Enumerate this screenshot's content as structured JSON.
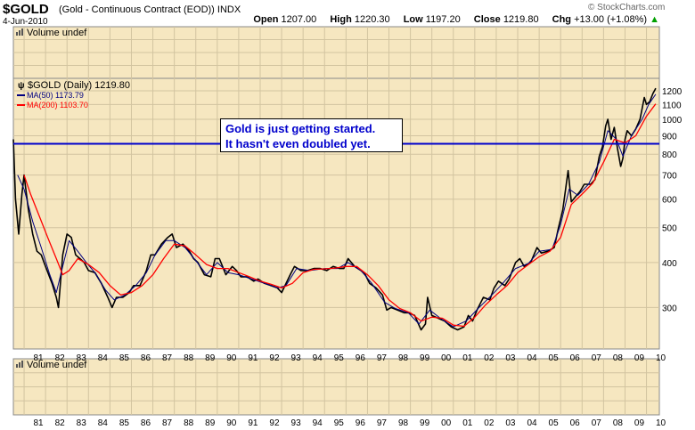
{
  "header": {
    "symbol": "$GOLD",
    "description": "(Gold - Continuous Contract (EOD))",
    "exchange": "INDX",
    "date": "4-Jun-2010",
    "brand": "© StockCharts.com",
    "open_label": "Open",
    "open": "1207.00",
    "high_label": "High",
    "high": "1220.30",
    "low_label": "Low",
    "low": "1197.20",
    "close_label": "Close",
    "close": "1219.80",
    "chg_label": "Chg",
    "chg": "+13.00 (+1.08%)",
    "chg_arrow": "▲"
  },
  "panels": {
    "volume_top_label": "Volume undef",
    "volume_bottom_label": "Volume undef"
  },
  "legend": {
    "price": "$GOLD (Daily) 1219.80",
    "ma50": "MA(50) 1173.79",
    "ma200": "MA(200) 1103.70"
  },
  "annotation": {
    "line1": "Gold is just getting started.",
    "line2": "It hasn't even doubled yet."
  },
  "colors": {
    "panel_bg": "#f6e7c0",
    "grid": "#d2c4a0",
    "price": "#000000",
    "ma50": "#000080",
    "ma200": "#ff0000",
    "hline": "#0000cc"
  },
  "chart_data": {
    "type": "line",
    "scale": "log",
    "ylim": [
      230,
      1300
    ],
    "xlim": [
      1980.5,
      2010.6
    ],
    "yticks": [
      300,
      400,
      500,
      600,
      700,
      800,
      900,
      1000,
      1100,
      1200
    ],
    "xtick_labels": [
      "81",
      "82",
      "83",
      "84",
      "85",
      "86",
      "87",
      "88",
      "89",
      "90",
      "91",
      "92",
      "93",
      "94",
      "95",
      "96",
      "97",
      "98",
      "99",
      "00",
      "01",
      "02",
      "03",
      "04",
      "05",
      "06",
      "07",
      "08",
      "09",
      "10"
    ],
    "xtick_years": [
      1981,
      1982,
      1983,
      1984,
      1985,
      1986,
      1987,
      1988,
      1989,
      1990,
      1991,
      1992,
      1993,
      1994,
      1995,
      1996,
      1997,
      1998,
      1999,
      2000,
      2001,
      2002,
      2003,
      2004,
      2005,
      2006,
      2007,
      2008,
      2009,
      2010
    ],
    "horizontal_line": 855,
    "series": [
      {
        "name": "$GOLD (Daily)",
        "points": [
          [
            1980.5,
            880
          ],
          [
            1980.6,
            600
          ],
          [
            1980.75,
            480
          ],
          [
            1980.9,
            620
          ],
          [
            1981.0,
            700
          ],
          [
            1981.2,
            560
          ],
          [
            1981.4,
            480
          ],
          [
            1981.6,
            430
          ],
          [
            1981.8,
            420
          ],
          [
            1982.0,
            390
          ],
          [
            1982.3,
            350
          ],
          [
            1982.5,
            320
          ],
          [
            1982.6,
            300
          ],
          [
            1982.8,
            420
          ],
          [
            1983.0,
            480
          ],
          [
            1983.2,
            470
          ],
          [
            1983.4,
            420
          ],
          [
            1983.6,
            410
          ],
          [
            1983.8,
            400
          ],
          [
            1984.0,
            380
          ],
          [
            1984.3,
            375
          ],
          [
            1984.6,
            350
          ],
          [
            1984.9,
            320
          ],
          [
            1985.1,
            300
          ],
          [
            1985.3,
            320
          ],
          [
            1985.6,
            320
          ],
          [
            1985.9,
            330
          ],
          [
            1986.1,
            345
          ],
          [
            1986.4,
            345
          ],
          [
            1986.7,
            380
          ],
          [
            1986.9,
            420
          ],
          [
            1987.1,
            420
          ],
          [
            1987.4,
            450
          ],
          [
            1987.7,
            470
          ],
          [
            1987.9,
            480
          ],
          [
            1988.1,
            440
          ],
          [
            1988.4,
            450
          ],
          [
            1988.7,
            430
          ],
          [
            1988.9,
            410
          ],
          [
            1989.1,
            400
          ],
          [
            1989.4,
            370
          ],
          [
            1989.7,
            365
          ],
          [
            1989.9,
            410
          ],
          [
            1990.1,
            410
          ],
          [
            1990.4,
            370
          ],
          [
            1990.7,
            390
          ],
          [
            1990.9,
            380
          ],
          [
            1991.1,
            365
          ],
          [
            1991.4,
            365
          ],
          [
            1991.7,
            355
          ],
          [
            1991.9,
            360
          ],
          [
            1992.2,
            350
          ],
          [
            1992.5,
            345
          ],
          [
            1992.8,
            340
          ],
          [
            1993.0,
            330
          ],
          [
            1993.4,
            370
          ],
          [
            1993.6,
            390
          ],
          [
            1993.9,
            380
          ],
          [
            1994.2,
            380
          ],
          [
            1994.5,
            385
          ],
          [
            1994.8,
            385
          ],
          [
            1995.1,
            380
          ],
          [
            1995.4,
            390
          ],
          [
            1995.7,
            385
          ],
          [
            1995.9,
            385
          ],
          [
            1996.1,
            410
          ],
          [
            1996.4,
            390
          ],
          [
            1996.7,
            380
          ],
          [
            1996.9,
            370
          ],
          [
            1997.1,
            350
          ],
          [
            1997.4,
            340
          ],
          [
            1997.7,
            325
          ],
          [
            1997.9,
            295
          ],
          [
            1998.1,
            300
          ],
          [
            1998.4,
            295
          ],
          [
            1998.7,
            290
          ],
          [
            1998.9,
            290
          ],
          [
            1999.2,
            285
          ],
          [
            1999.5,
            260
          ],
          [
            1999.7,
            270
          ],
          [
            1999.8,
            320
          ],
          [
            2000.0,
            285
          ],
          [
            2000.3,
            280
          ],
          [
            2000.6,
            275
          ],
          [
            2000.9,
            265
          ],
          [
            2001.2,
            260
          ],
          [
            2001.5,
            265
          ],
          [
            2001.7,
            285
          ],
          [
            2001.9,
            275
          ],
          [
            2002.1,
            295
          ],
          [
            2002.4,
            320
          ],
          [
            2002.7,
            315
          ],
          [
            2002.9,
            340
          ],
          [
            2003.1,
            355
          ],
          [
            2003.4,
            345
          ],
          [
            2003.6,
            360
          ],
          [
            2003.9,
            400
          ],
          [
            2004.1,
            410
          ],
          [
            2004.3,
            390
          ],
          [
            2004.6,
            400
          ],
          [
            2004.9,
            440
          ],
          [
            2005.1,
            425
          ],
          [
            2005.4,
            430
          ],
          [
            2005.7,
            440
          ],
          [
            2005.9,
            500
          ],
          [
            2006.1,
            560
          ],
          [
            2006.35,
            720
          ],
          [
            2006.5,
            590
          ],
          [
            2006.7,
            610
          ],
          [
            2006.9,
            630
          ],
          [
            2007.1,
            660
          ],
          [
            2007.4,
            660
          ],
          [
            2007.6,
            680
          ],
          [
            2007.8,
            790
          ],
          [
            2007.95,
            840
          ],
          [
            2008.1,
            960
          ],
          [
            2008.2,
            1000
          ],
          [
            2008.35,
            880
          ],
          [
            2008.5,
            950
          ],
          [
            2008.65,
            830
          ],
          [
            2008.8,
            740
          ],
          [
            2008.9,
            780
          ],
          [
            2009.0,
            880
          ],
          [
            2009.1,
            930
          ],
          [
            2009.3,
            900
          ],
          [
            2009.5,
            940
          ],
          [
            2009.7,
            1000
          ],
          [
            2009.9,
            1150
          ],
          [
            2010.0,
            1100
          ],
          [
            2010.15,
            1120
          ],
          [
            2010.3,
            1180
          ],
          [
            2010.4,
            1210
          ],
          [
            2010.43,
            1220
          ]
        ]
      },
      {
        "name": "MA(50)",
        "points": [
          [
            1980.7,
            700
          ],
          [
            1981.0,
            640
          ],
          [
            1981.4,
            520
          ],
          [
            1981.8,
            440
          ],
          [
            1982.2,
            370
          ],
          [
            1982.5,
            330
          ],
          [
            1982.8,
            390
          ],
          [
            1983.1,
            460
          ],
          [
            1983.5,
            430
          ],
          [
            1983.9,
            400
          ],
          [
            1984.3,
            375
          ],
          [
            1984.8,
            335
          ],
          [
            1985.2,
            315
          ],
          [
            1985.7,
            325
          ],
          [
            1986.2,
            345
          ],
          [
            1986.7,
            375
          ],
          [
            1987.1,
            420
          ],
          [
            1987.6,
            460
          ],
          [
            1988.0,
            460
          ],
          [
            1988.5,
            440
          ],
          [
            1989.0,
            405
          ],
          [
            1989.5,
            370
          ],
          [
            1990.0,
            400
          ],
          [
            1990.5,
            375
          ],
          [
            1991.0,
            370
          ],
          [
            1991.6,
            360
          ],
          [
            1992.2,
            350
          ],
          [
            1992.8,
            340
          ],
          [
            1993.2,
            345
          ],
          [
            1993.7,
            385
          ],
          [
            1994.3,
            380
          ],
          [
            1995.0,
            385
          ],
          [
            1995.6,
            385
          ],
          [
            1996.1,
            400
          ],
          [
            1996.7,
            380
          ],
          [
            1997.2,
            350
          ],
          [
            1997.8,
            310
          ],
          [
            1998.3,
            298
          ],
          [
            1998.9,
            290
          ],
          [
            1999.4,
            270
          ],
          [
            1999.9,
            295
          ],
          [
            2000.4,
            280
          ],
          [
            2001.0,
            265
          ],
          [
            2001.6,
            275
          ],
          [
            2002.2,
            300
          ],
          [
            2002.8,
            325
          ],
          [
            2003.3,
            350
          ],
          [
            2003.9,
            385
          ],
          [
            2004.5,
            398
          ],
          [
            2005.0,
            430
          ],
          [
            2005.6,
            435
          ],
          [
            2006.0,
            510
          ],
          [
            2006.4,
            640
          ],
          [
            2006.8,
            615
          ],
          [
            2007.3,
            660
          ],
          [
            2007.8,
            760
          ],
          [
            2008.2,
            930
          ],
          [
            2008.6,
            880
          ],
          [
            2008.9,
            790
          ],
          [
            2009.3,
            900
          ],
          [
            2009.8,
            1000
          ],
          [
            2010.1,
            1100
          ],
          [
            2010.43,
            1174
          ]
        ]
      },
      {
        "name": "MA(200)",
        "points": [
          [
            1981.0,
            700
          ],
          [
            1981.3,
            620
          ],
          [
            1981.7,
            540
          ],
          [
            1982.1,
            470
          ],
          [
            1982.5,
            410
          ],
          [
            1982.8,
            370
          ],
          [
            1983.1,
            380
          ],
          [
            1983.5,
            410
          ],
          [
            1984.0,
            395
          ],
          [
            1984.5,
            375
          ],
          [
            1985.0,
            345
          ],
          [
            1985.5,
            325
          ],
          [
            1986.0,
            330
          ],
          [
            1986.5,
            345
          ],
          [
            1987.0,
            370
          ],
          [
            1987.5,
            410
          ],
          [
            1988.0,
            450
          ],
          [
            1988.5,
            445
          ],
          [
            1989.0,
            420
          ],
          [
            1989.5,
            395
          ],
          [
            1990.0,
            385
          ],
          [
            1990.5,
            385
          ],
          [
            1991.0,
            375
          ],
          [
            1991.5,
            365
          ],
          [
            1992.0,
            355
          ],
          [
            1992.5,
            348
          ],
          [
            1993.0,
            340
          ],
          [
            1993.5,
            350
          ],
          [
            1994.0,
            375
          ],
          [
            1994.5,
            383
          ],
          [
            1995.0,
            384
          ],
          [
            1995.5,
            386
          ],
          [
            1996.0,
            390
          ],
          [
            1996.5,
            390
          ],
          [
            1997.0,
            370
          ],
          [
            1997.5,
            345
          ],
          [
            1998.0,
            315
          ],
          [
            1998.5,
            298
          ],
          [
            1999.0,
            290
          ],
          [
            1999.5,
            275
          ],
          [
            2000.0,
            282
          ],
          [
            2000.5,
            280
          ],
          [
            2001.0,
            268
          ],
          [
            2001.5,
            266
          ],
          [
            2002.0,
            282
          ],
          [
            2002.5,
            305
          ],
          [
            2003.0,
            325
          ],
          [
            2003.5,
            345
          ],
          [
            2004.0,
            375
          ],
          [
            2004.5,
            395
          ],
          [
            2005.0,
            415
          ],
          [
            2005.5,
            430
          ],
          [
            2006.0,
            470
          ],
          [
            2006.5,
            580
          ],
          [
            2007.0,
            620
          ],
          [
            2007.5,
            665
          ],
          [
            2008.0,
            760
          ],
          [
            2008.5,
            880
          ],
          [
            2009.0,
            860
          ],
          [
            2009.5,
            900
          ],
          [
            2010.0,
            1020
          ],
          [
            2010.43,
            1104
          ]
        ]
      }
    ]
  }
}
